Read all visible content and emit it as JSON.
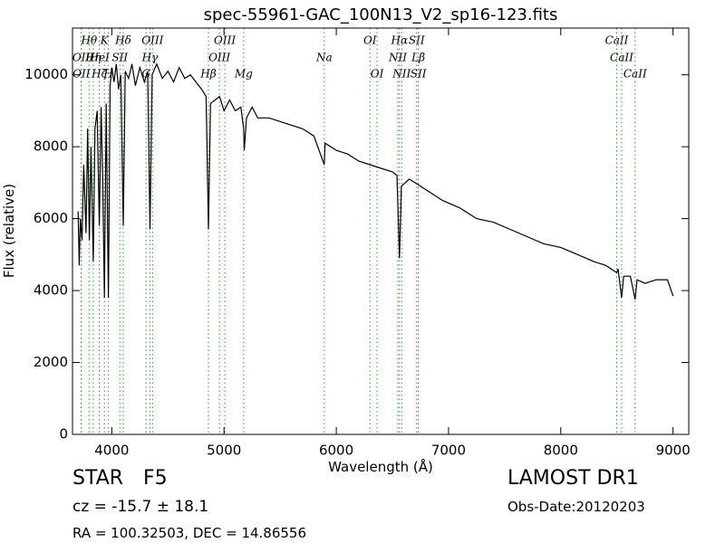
{
  "chart_data": {
    "type": "line",
    "title": "spec-55961-GAC_100N13_V2_sp16-123.fits",
    "x_label": "Wavelength (Å)",
    "y_label": "Flux (relative)",
    "color": "#000000",
    "line_color": "#2ca02c",
    "xlim": [
      3650,
      9140
    ],
    "ylim": [
      0,
      11300
    ],
    "xticks": [
      4000,
      5000,
      6000,
      7000,
      8000,
      9000
    ],
    "yticks": [
      0,
      2000,
      4000,
      6000,
      8000,
      10000
    ],
    "x": [
      3700,
      3710,
      3720,
      3735,
      3750,
      3770,
      3785,
      3800,
      3815,
      3835,
      3850,
      3870,
      3889,
      3905,
      3920,
      3934,
      3950,
      3970,
      3985,
      4000,
      4020,
      4040,
      4060,
      4080,
      4102,
      4120,
      4150,
      4180,
      4210,
      4250,
      4290,
      4320,
      4340,
      4360,
      4400,
      4450,
      4500,
      4550,
      4600,
      4650,
      4700,
      4750,
      4800,
      4840,
      4861,
      4880,
      4920,
      4960,
      5000,
      5050,
      5100,
      5150,
      5175,
      5180,
      5200,
      5250,
      5300,
      5400,
      5500,
      5600,
      5700,
      5800,
      5893,
      5900,
      6000,
      6100,
      6200,
      6300,
      6400,
      6500,
      6540,
      6563,
      6580,
      6650,
      6750,
      6850,
      6950,
      7100,
      7250,
      7400,
      7550,
      7700,
      7850,
      8000,
      8150,
      8300,
      8400,
      8498,
      8510,
      8542,
      8560,
      8620,
      8662,
      8680,
      8750,
      8850,
      8950,
      9000
    ],
    "values": [
      6200,
      4700,
      6000,
      5400,
      7500,
      5600,
      8500,
      5400,
      8000,
      4800,
      8500,
      9000,
      5800,
      9100,
      7000,
      3800,
      9200,
      3800,
      9700,
      10200,
      9800,
      10300,
      9600,
      10000,
      5800,
      10100,
      9900,
      10300,
      9700,
      10200,
      9800,
      10100,
      5700,
      10000,
      10300,
      9900,
      10100,
      9800,
      10200,
      9900,
      10000,
      9800,
      9600,
      9400,
      5700,
      9200,
      9300,
      9400,
      9000,
      9300,
      9000,
      9100,
      8500,
      7900,
      8800,
      9100,
      8800,
      8800,
      8700,
      8600,
      8500,
      8300,
      7500,
      8100,
      7900,
      7800,
      7600,
      7500,
      7400,
      7300,
      7200,
      4900,
      6900,
      7100,
      6900,
      6700,
      6500,
      6300,
      6000,
      5900,
      5700,
      5500,
      5300,
      5200,
      5000,
      4800,
      4700,
      4500,
      4600,
      3800,
      4400,
      4400,
      3750,
      4300,
      4200,
      4300,
      4300,
      3850
    ],
    "line_labels": [
      [
        {
          "label": "Hθ",
          "x": 3798
        },
        {
          "label": "K",
          "x": 3934
        },
        {
          "label": "Hδ",
          "x": 4102
        },
        {
          "label": "OIII",
          "x": 4363
        },
        {
          "label": "OIII",
          "x": 5007
        },
        {
          "label": "OI",
          "x": 6300
        },
        {
          "label": "Hα",
          "x": 6563
        },
        {
          "label": "SII",
          "x": 6716
        },
        {
          "label": "CaII",
          "x": 8498
        }
      ],
      [
        {
          "label": "OII",
          "x": 3727
        },
        {
          "label": "Hη",
          "x": 3835
        },
        {
          "label": "HeI",
          "x": 3889
        },
        {
          "label": "SII",
          "x": 4072
        },
        {
          "label": "Hγ",
          "x": 4340
        },
        {
          "label": "OIII",
          "x": 4959
        },
        {
          "label": "Na",
          "x": 5893
        },
        {
          "label": "NII",
          "x": 6548
        },
        {
          "label": "Lβ",
          "x": 6731
        },
        {
          "label": "CaII",
          "x": 8542
        }
      ],
      [
        {
          "label": "OII",
          "x": 3729
        },
        {
          "label": "Hζ",
          "x": 3889
        },
        {
          "label": "H",
          "x": 3970
        },
        {
          "label": "G",
          "x": 4305
        },
        {
          "label": "Hβ",
          "x": 4861
        },
        {
          "label": "Mg",
          "x": 5175
        },
        {
          "label": "OI",
          "x": 6363
        },
        {
          "label": "NII",
          "x": 6583
        },
        {
          "label": "SII",
          "x": 6731
        },
        {
          "label": "CaII",
          "x": 8662
        }
      ]
    ],
    "object_class": "STAR",
    "subclass": "F5",
    "cz": "cz = -15.7 ± 18.1",
    "coords": "RA = 100.32503, DEC = 14.86556",
    "survey": "LAMOST DR1",
    "obs_date": "Obs-Date:20120203"
  }
}
